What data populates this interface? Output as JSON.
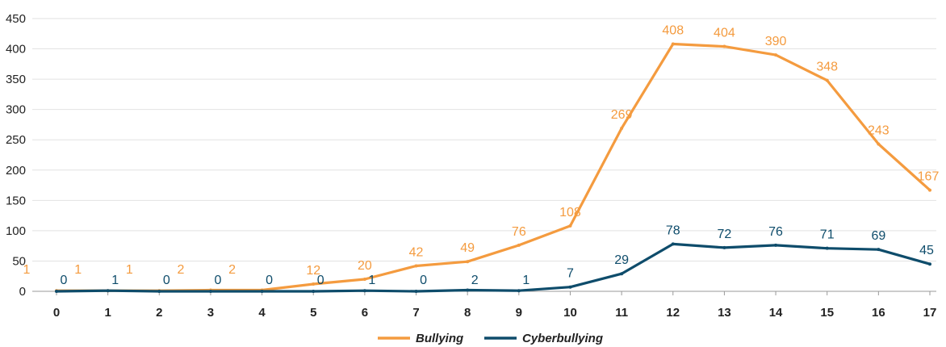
{
  "chart_data": {
    "type": "line",
    "x": [
      "0",
      "1",
      "2",
      "3",
      "4",
      "5",
      "6",
      "7",
      "8",
      "9",
      "10",
      "11",
      "12",
      "13",
      "14",
      "15",
      "16",
      "17"
    ],
    "ylim": [
      0,
      450
    ],
    "yticks": [
      "0",
      "50",
      "100",
      "150",
      "200",
      "250",
      "300",
      "350",
      "400",
      "450"
    ],
    "grid": true,
    "legend_position": "bottom-center",
    "series": [
      {
        "name": "Bullying",
        "color": "#F49B3F",
        "values": [
          1,
          1,
          1,
          2,
          2,
          12,
          20,
          42,
          49,
          76,
          108,
          269,
          408,
          404,
          390,
          348,
          243,
          167
        ],
        "labels": [
          "1",
          "1",
          "1",
          "2",
          "2",
          "12",
          "20",
          "42",
          "49",
          "76",
          "108",
          "269",
          "408",
          "404",
          "390",
          "348",
          "243",
          "167"
        ]
      },
      {
        "name": "Cyberbullying",
        "color": "#0E4C6B",
        "values": [
          0,
          1,
          0,
          0,
          0,
          0,
          1,
          0,
          2,
          1,
          7,
          29,
          78,
          72,
          76,
          71,
          69,
          45
        ],
        "labels": [
          "0",
          "1",
          "0",
          "0",
          "0",
          "0",
          "1",
          "0",
          "2",
          "1",
          "7",
          "29",
          "78",
          "72",
          "76",
          "71",
          "69",
          "45"
        ]
      }
    ]
  }
}
